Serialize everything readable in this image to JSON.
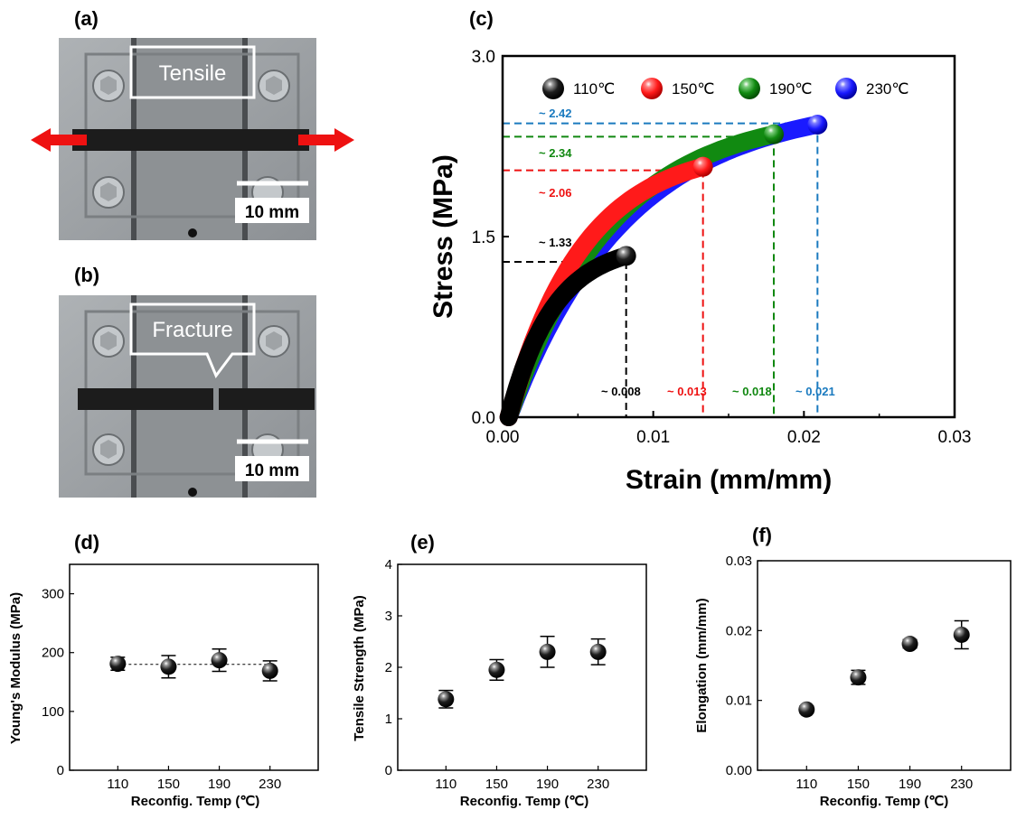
{
  "panels": {
    "a": "(a)",
    "b": "(b)",
    "c": "(c)",
    "d": "(d)",
    "e": "(e)",
    "f": "(f)"
  },
  "photo_a": {
    "label": "Tensile",
    "scale": "10 mm"
  },
  "photo_b": {
    "label": "Fracture",
    "scale": "10 mm"
  },
  "colors": {
    "c110": "#000000",
    "c150": "#ff1a1a",
    "c190": "#118a11",
    "c230": "#1a1aff",
    "ann110": "#000000",
    "ann150": "#ee1111",
    "ann190": "#118811",
    "ann230": "#1a7abf"
  },
  "chart_data": [
    {
      "type": "line",
      "title": "",
      "xlabel": "Strain (mm/mm)",
      "ylabel": "Stress (MPa)",
      "xlim": [
        0,
        0.03
      ],
      "ylim": [
        0,
        3.0
      ],
      "xticks": [
        "0.00",
        "0.01",
        "0.02",
        "0.03"
      ],
      "yticks": [
        "0.0",
        "1.5",
        "3.0"
      ],
      "legend_position": "top",
      "series": [
        {
          "name": "110℃",
          "color_key": "c110",
          "end_strain": 0.0082,
          "end_stress": 1.34
        },
        {
          "name": "150℃",
          "color_key": "c150",
          "end_strain": 0.0133,
          "end_stress": 2.08
        },
        {
          "name": "190℃",
          "color_key": "c190",
          "end_strain": 0.018,
          "end_stress": 2.35
        },
        {
          "name": "230℃",
          "color_key": "c230",
          "end_strain": 0.0209,
          "end_stress": 2.43
        }
      ],
      "stress_annotations": [
        {
          "text": "~ 1.33",
          "y": 1.29,
          "x_end": 0.0082,
          "color_key": "ann110"
        },
        {
          "text": "~ 2.06",
          "y": 2.05,
          "x_end": 0.0133,
          "color_key": "ann150"
        },
        {
          "text": "~ 2.34",
          "y": 2.33,
          "x_end": 0.018,
          "color_key": "ann190"
        },
        {
          "text": "~ 2.42",
          "y": 2.44,
          "x_end": 0.0209,
          "color_key": "ann230"
        }
      ],
      "strain_annotations": [
        {
          "text": "~ 0.008",
          "x": 0.0082,
          "color_key": "ann110"
        },
        {
          "text": "~ 0.013",
          "x": 0.0133,
          "color_key": "ann150"
        },
        {
          "text": "~ 0.018",
          "x": 0.018,
          "color_key": "ann190"
        },
        {
          "text": "~ 0.021",
          "x": 0.0209,
          "color_key": "ann230"
        }
      ]
    },
    {
      "type": "scatter",
      "xlabel": "Reconfig. Temp (℃)",
      "ylabel": "Young's Modulus (MPa)",
      "categories": [
        "110",
        "150",
        "190",
        "230"
      ],
      "values": [
        181,
        176,
        187,
        169
      ],
      "errors": [
        11,
        19,
        19,
        17
      ],
      "ylim": [
        0,
        350
      ],
      "yticks": [
        "0",
        "100",
        "200",
        "300"
      ],
      "reference_line": 180
    },
    {
      "type": "scatter",
      "xlabel": "Reconfig. Temp (℃)",
      "ylabel": "Tensile Strength (MPa)",
      "categories": [
        "110",
        "150",
        "190",
        "230"
      ],
      "values": [
        1.38,
        1.95,
        2.3,
        2.3
      ],
      "errors": [
        0.17,
        0.2,
        0.3,
        0.25
      ],
      "ylim": [
        0,
        4
      ],
      "yticks": [
        "0",
        "1",
        "2",
        "3",
        "4"
      ]
    },
    {
      "type": "scatter",
      "xlabel": "Reconfig. Temp (℃)",
      "ylabel": "Elongation (mm/mm)",
      "categories": [
        "110",
        "150",
        "190",
        "230"
      ],
      "values": [
        0.0087,
        0.0133,
        0.0181,
        0.0194
      ],
      "errors": [
        0.0005,
        0.001,
        0.0006,
        0.002
      ],
      "ylim": [
        0,
        0.03
      ],
      "yticks": [
        "0.00",
        "0.01",
        "0.02",
        "0.03"
      ]
    }
  ]
}
